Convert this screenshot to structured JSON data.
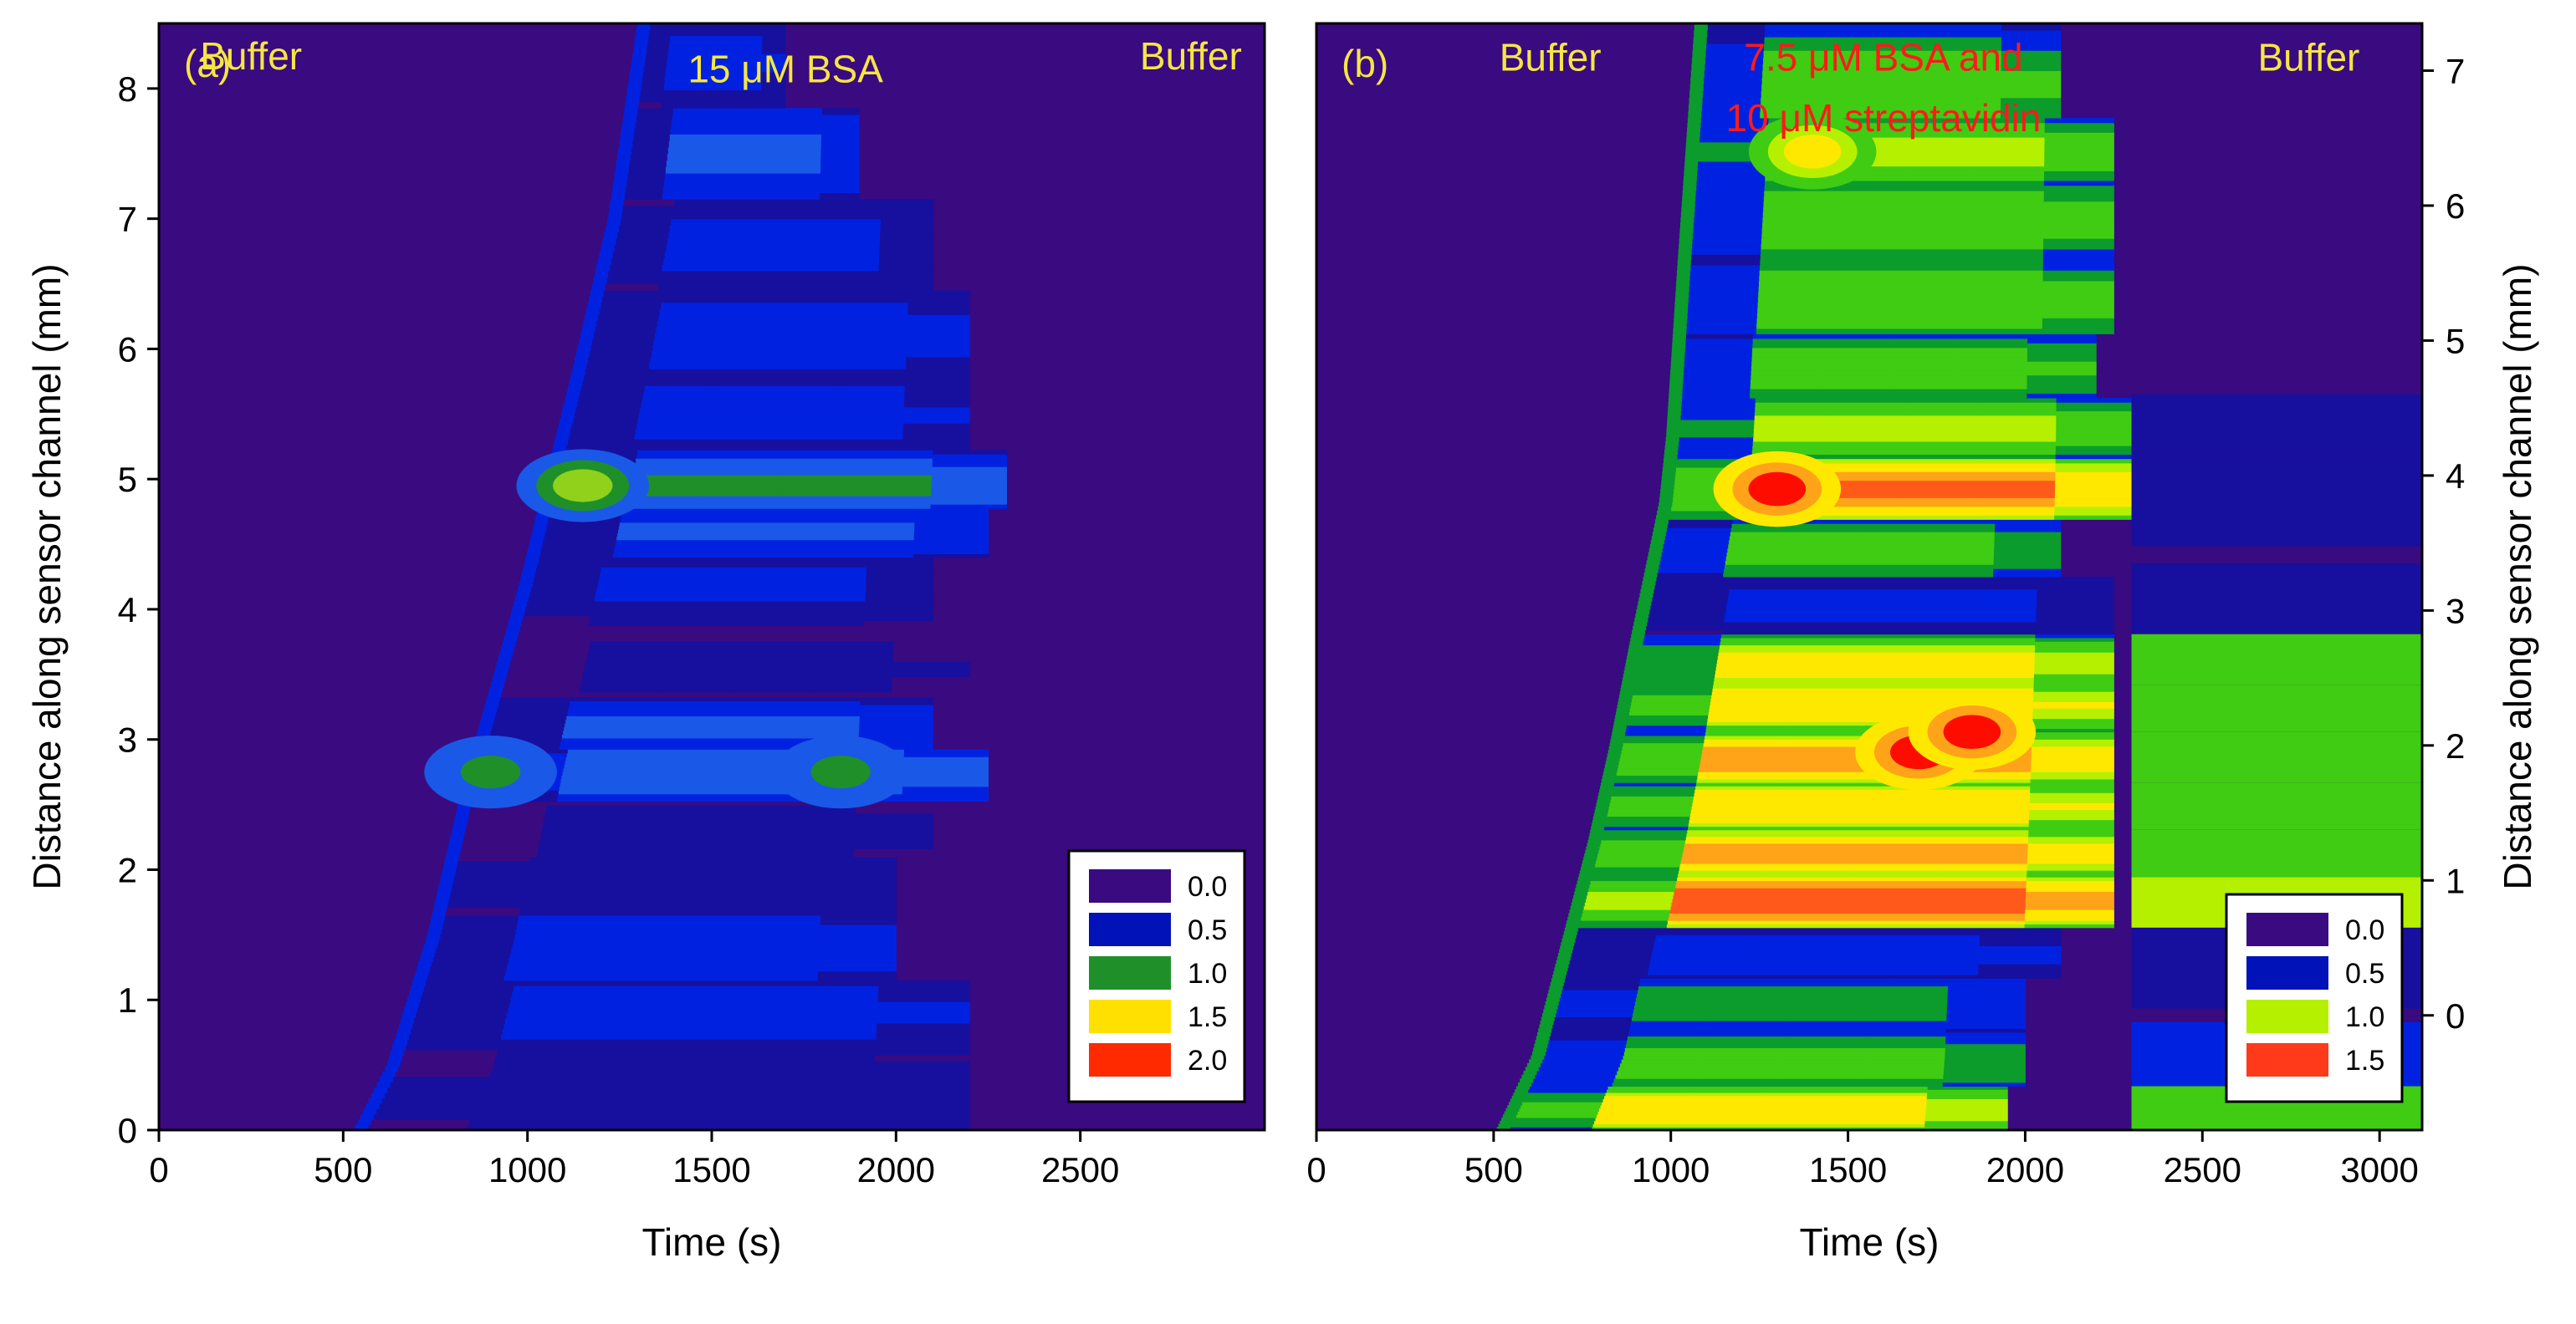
{
  "chart_data": [
    {
      "panel": "(a)",
      "type": "heatmap",
      "xlabel": "Time (s)",
      "ylabel": "Distance along sensor channel (mm)",
      "xlim": [
        0,
        3000
      ],
      "ylim": [
        0,
        8.5
      ],
      "x_ticks": [
        "0",
        "500",
        "1000",
        "1500",
        "2000",
        "2500"
      ],
      "y_ticks": [
        "0",
        "1",
        "2",
        "3",
        "4",
        "5",
        "6",
        "7",
        "8"
      ],
      "annotations": [
        {
          "text": "Buffer",
          "x": 250,
          "y": 8.25,
          "color": "#f5e642"
        },
        {
          "text": "15 μM BSA",
          "x": 1700,
          "y": 8.15,
          "color": "#f5e642"
        },
        {
          "text": "Buffer",
          "x": 2800,
          "y": 8.25,
          "color": "#f5e642"
        }
      ],
      "legend": {
        "position": "bottom-right",
        "entries": [
          {
            "label": "0.0",
            "color": "#3a0a80"
          },
          {
            "label": "0.5",
            "color": "#0012b8"
          },
          {
            "label": "1.0",
            "color": "#1f8f2a"
          },
          {
            "label": "1.5",
            "color": "#ffe000"
          },
          {
            "label": "2.0",
            "color": "#ff2a00"
          }
        ]
      },
      "onset_curve": [
        [
          560,
          0
        ],
        [
          650,
          0.5
        ],
        [
          760,
          1.5
        ],
        [
          860,
          2.7
        ],
        [
          940,
          3.5
        ],
        [
          1010,
          4.2
        ],
        [
          1080,
          5.0
        ],
        [
          1150,
          5.8
        ],
        [
          1250,
          7.0
        ],
        [
          1330,
          8.5
        ]
      ],
      "washout_time": 2200,
      "levels": [
        {
          "y": 0.25,
          "level": 0.45,
          "end": 2200
        },
        {
          "y": 0.9,
          "level": 0.6,
          "end": 2200
        },
        {
          "y": 1.4,
          "level": 0.75,
          "end": 2000
        },
        {
          "y": 1.9,
          "level": 0.5,
          "end": 2000
        },
        {
          "y": 2.3,
          "level": 0.35,
          "end": 2100
        },
        {
          "y": 2.75,
          "level": 1.0,
          "end": 2250
        },
        {
          "y": 3.1,
          "level": 0.8,
          "end": 2100
        },
        {
          "y": 3.55,
          "level": 0.3,
          "end": 2200
        },
        {
          "y": 4.2,
          "level": 0.55,
          "end": 2100
        },
        {
          "y": 4.6,
          "level": 0.8,
          "end": 2250
        },
        {
          "y": 4.95,
          "level": 1.05,
          "end": 2300
        },
        {
          "y": 5.5,
          "level": 0.6,
          "end": 2200
        },
        {
          "y": 6.1,
          "level": 0.65,
          "end": 2200
        },
        {
          "y": 6.8,
          "level": 0.55,
          "end": 2100
        },
        {
          "y": 7.5,
          "level": 0.8,
          "end": 1900
        },
        {
          "y": 8.2,
          "level": 0.6,
          "end": 1700
        }
      ],
      "hotspots": [
        {
          "x": 1150,
          "y": 4.95,
          "level": 1.35
        },
        {
          "x": 900,
          "y": 2.75,
          "level": 1.1
        },
        {
          "x": 1850,
          "y": 2.75,
          "level": 1.1
        }
      ]
    },
    {
      "panel": "(b)",
      "type": "heatmap",
      "xlabel": "Time (s)",
      "ylabel": "Distance along sensor channel (mm)",
      "xlim": [
        0,
        3120
      ],
      "ylim": [
        -0.85,
        7.35
      ],
      "x_ticks": [
        "0",
        "500",
        "1000",
        "1500",
        "2000",
        "2500",
        "3000"
      ],
      "y_ticks": [
        "0",
        "1",
        "2",
        "3",
        "4",
        "5",
        "6",
        "7"
      ],
      "annotations": [
        {
          "text": "Buffer",
          "x": 660,
          "y": 7.1,
          "color": "#f5e642"
        },
        {
          "text": "7.5 μM BSA and",
          "x": 1600,
          "y": 7.1,
          "color": "#ff1a1a"
        },
        {
          "text": "10 μM streptavidin",
          "x": 1600,
          "y": 6.65,
          "color": "#ff1a1a"
        },
        {
          "text": "Buffer",
          "x": 2800,
          "y": 7.1,
          "color": "#f5e642"
        }
      ],
      "legend": {
        "position": "bottom-right",
        "entries": [
          {
            "label": "0.0",
            "color": "#3a0a80"
          },
          {
            "label": "0.5",
            "color": "#0012b8"
          },
          {
            "label": "1.0",
            "color": "#b5f000"
          },
          {
            "label": "1.5",
            "color": "#ff3a1a"
          }
        ]
      },
      "onset_curve": [
        [
          540,
          -0.85
        ],
        [
          640,
          -0.3
        ],
        [
          720,
          0.5
        ],
        [
          800,
          1.3
        ],
        [
          860,
          2.0
        ],
        [
          920,
          2.8
        ],
        [
          1000,
          3.8
        ],
        [
          1020,
          4.3
        ],
        [
          1050,
          5.5
        ],
        [
          1100,
          7.35
        ]
      ],
      "washout_time": 2300,
      "levels": [
        {
          "y": -0.7,
          "level": 1.25,
          "end": 1950
        },
        {
          "y": -0.35,
          "level": 0.85,
          "end": 2000
        },
        {
          "y": 0.1,
          "level": 0.7,
          "end": 2000
        },
        {
          "y": 0.45,
          "level": 0.5,
          "end": 2100
        },
        {
          "y": 0.85,
          "level": 1.6,
          "end": 2250
        },
        {
          "y": 1.2,
          "level": 1.4,
          "end": 2250
        },
        {
          "y": 1.55,
          "level": 1.3,
          "end": 2250
        },
        {
          "y": 1.9,
          "level": 1.45,
          "end": 2250
        },
        {
          "y": 2.3,
          "level": 1.3,
          "end": 2250
        },
        {
          "y": 2.6,
          "level": 1.2,
          "end": 2250
        },
        {
          "y": 3.05,
          "level": 0.45,
          "end": 2250
        },
        {
          "y": 3.45,
          "level": 0.85,
          "end": 2100
        },
        {
          "y": 3.9,
          "level": 1.5,
          "end": 2300
        },
        {
          "y": 4.35,
          "level": 1.0,
          "end": 2300
        },
        {
          "y": 4.8,
          "level": 0.9,
          "end": 2200
        },
        {
          "y": 5.3,
          "level": 0.95,
          "end": 2250
        },
        {
          "y": 5.9,
          "level": 0.95,
          "end": 2250
        },
        {
          "y": 6.4,
          "level": 1.0,
          "end": 2250
        },
        {
          "y": 6.9,
          "level": 0.9,
          "end": 2100
        }
      ],
      "washout_levels": [
        {
          "y": -0.7,
          "level": 0.75
        },
        {
          "y": -0.35,
          "level": 0.4
        },
        {
          "y": 0.45,
          "level": 0.3
        },
        {
          "y": 0.85,
          "level": 0.95
        },
        {
          "y": 1.2,
          "level": 0.9
        },
        {
          "y": 1.55,
          "level": 0.85
        },
        {
          "y": 1.9,
          "level": 0.85
        },
        {
          "y": 2.3,
          "level": 0.8
        },
        {
          "y": 2.6,
          "level": 0.8
        },
        {
          "y": 3.05,
          "level": 0.2
        },
        {
          "y": 3.9,
          "level": 0.35
        },
        {
          "y": 4.35,
          "level": 0.25
        }
      ],
      "hotspots": [
        {
          "x": 1300,
          "y": 3.9,
          "level": 1.7
        },
        {
          "x": 1700,
          "y": 1.95,
          "level": 1.7
        },
        {
          "x": 1850,
          "y": 2.1,
          "level": 1.65
        },
        {
          "x": 1400,
          "y": 6.4,
          "level": 1.2
        }
      ]
    }
  ]
}
